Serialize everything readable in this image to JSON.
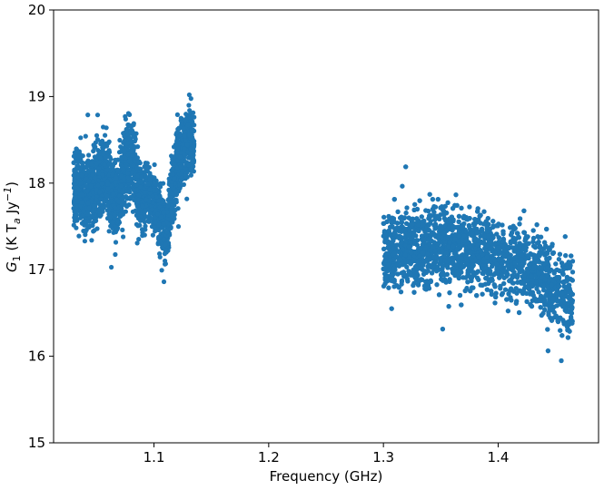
{
  "chart_data": {
    "type": "scatter",
    "xlabel": "Frequency (GHz)",
    "ylabel_symbol": "G",
    "ylabel_subscript": "1",
    "ylabel_open": " (K T",
    "ylabel_sub_a": "a",
    "ylabel_mid": " Jy",
    "ylabel_sup": "−1",
    "ylabel_close": ")",
    "xlim": [
      1.0125,
      1.4875
    ],
    "ylim": [
      15,
      20
    ],
    "xticks": [
      1.1,
      1.2,
      1.3,
      1.4
    ],
    "xtick_labels": [
      "1.1",
      "1.2",
      "1.3",
      "1.4"
    ],
    "yticks": [
      15,
      16,
      17,
      18,
      19,
      20
    ],
    "ytick_labels": [
      "15",
      "16",
      "17",
      "18",
      "19",
      "20"
    ],
    "grid": false,
    "marker_color": "#1f77b4",
    "series": [
      {
        "x": [
          1.03,
          1.035,
          1.04,
          1.045,
          1.05,
          1.055,
          1.06,
          1.065,
          1.07,
          1.075,
          1.08,
          1.085,
          1.09,
          1.095,
          1.1,
          1.105,
          1.11,
          1.115,
          1.12,
          1.125,
          1.13,
          1.135
        ],
        "y": [
          17.9,
          18.0,
          17.8,
          17.9,
          18.0,
          18.1,
          18.0,
          17.8,
          17.9,
          18.2,
          18.3,
          18.0,
          17.8,
          17.9,
          17.8,
          17.6,
          17.4,
          17.8,
          18.2,
          18.4,
          18.5,
          18.4
        ],
        "y_spread": [
          0.45,
          0.45,
          0.5,
          0.5,
          0.55,
          0.5,
          0.5,
          0.45,
          0.5,
          0.55,
          0.55,
          0.5,
          0.4,
          0.4,
          0.35,
          0.4,
          0.4,
          0.45,
          0.5,
          0.45,
          0.45,
          0.4
        ]
      },
      {
        "x": [
          1.3,
          1.31,
          1.32,
          1.33,
          1.34,
          1.35,
          1.36,
          1.37,
          1.38,
          1.39,
          1.4,
          1.41,
          1.42,
          1.43,
          1.44,
          1.45,
          1.46,
          1.465
        ],
        "y": [
          17.2,
          17.2,
          17.25,
          17.25,
          17.25,
          17.3,
          17.3,
          17.25,
          17.2,
          17.2,
          17.15,
          17.1,
          17.05,
          17.0,
          16.9,
          16.8,
          16.7,
          16.6
        ],
        "y_spread": [
          0.45,
          0.5,
          0.5,
          0.55,
          0.55,
          0.55,
          0.5,
          0.5,
          0.5,
          0.5,
          0.5,
          0.5,
          0.5,
          0.5,
          0.5,
          0.55,
          0.55,
          0.55
        ]
      }
    ]
  }
}
